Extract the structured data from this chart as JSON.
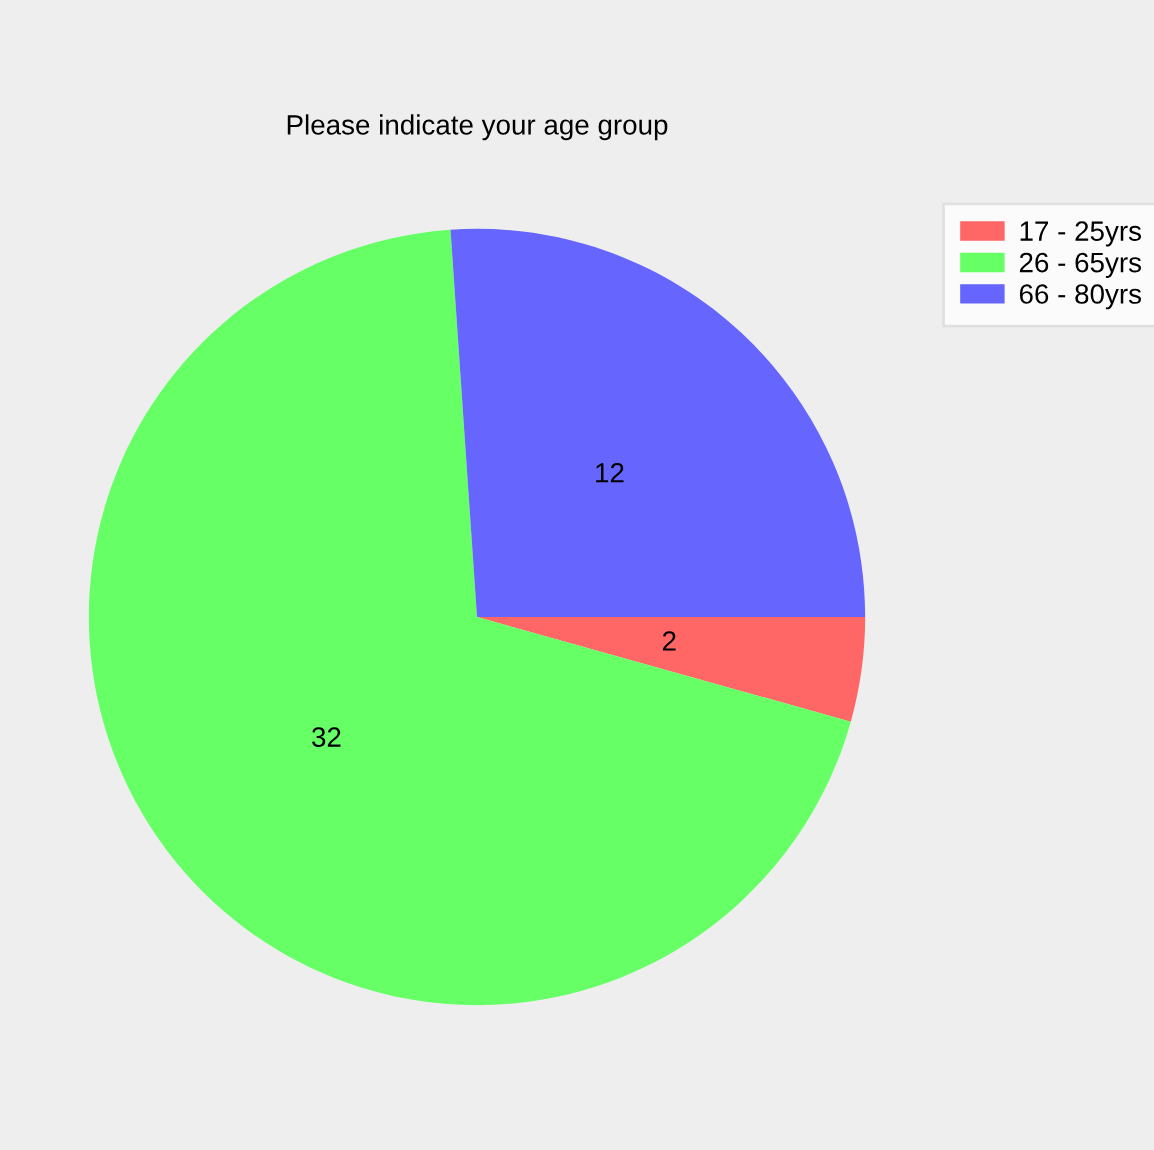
{
  "chart_data": {
    "type": "pie",
    "title": "Please indicate your age group",
    "categories": [
      "17 - 25yrs",
      "26 - 65yrs",
      "66 - 80yrs"
    ],
    "values": [
      2,
      32,
      12
    ],
    "colors": [
      "#ff6666",
      "#66ff66",
      "#6666ff"
    ],
    "data_labels": true,
    "legend": "top right"
  }
}
